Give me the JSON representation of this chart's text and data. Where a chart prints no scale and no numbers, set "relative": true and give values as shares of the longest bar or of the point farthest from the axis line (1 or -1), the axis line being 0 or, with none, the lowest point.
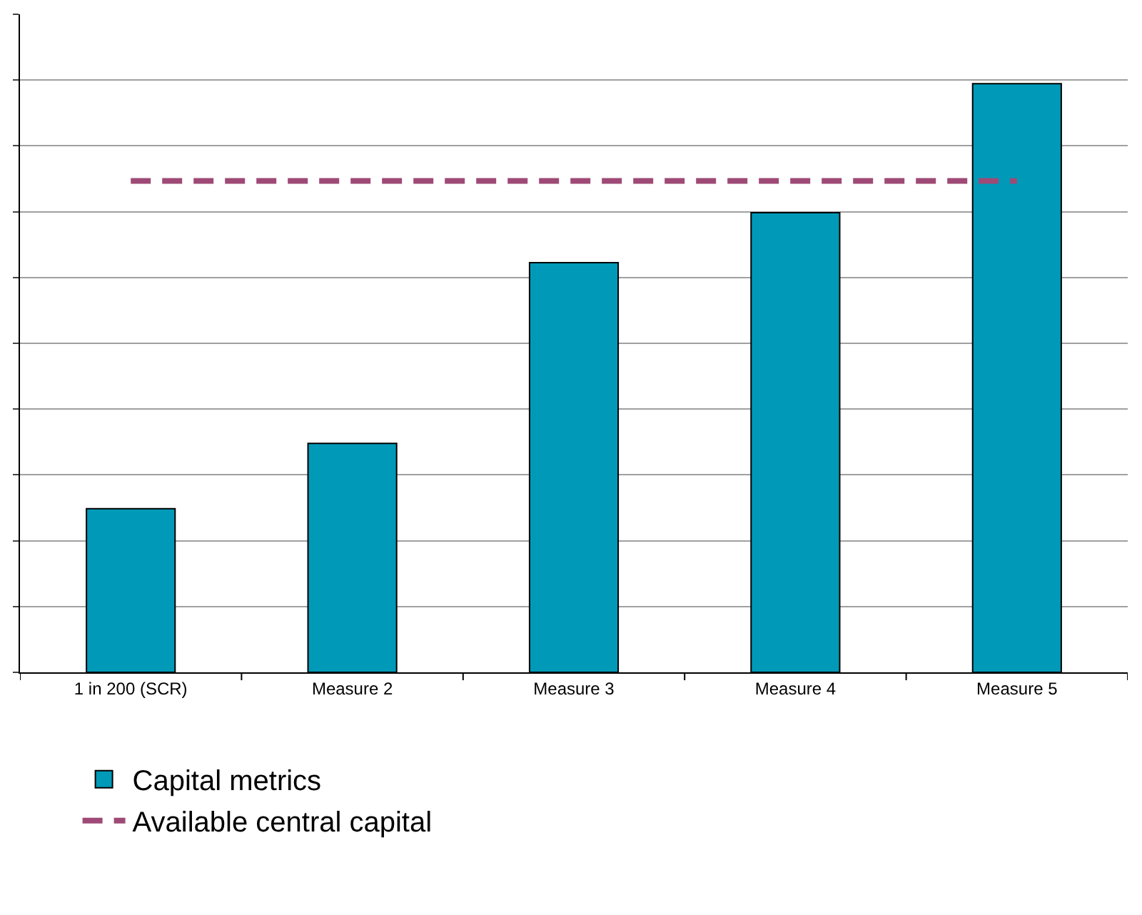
{
  "chart_data": {
    "type": "bar",
    "relative": true,
    "categories": [
      "1 in 200 (SCR)",
      "Measure 2",
      "Measure 3",
      "Measure 4",
      "Measure 5"
    ],
    "series": [
      {
        "name": "Capital metrics",
        "color": "#009ab8",
        "values": [
          0.278,
          0.389,
          0.696,
          0.781,
          1
        ]
      },
      {
        "name": "Available central capital",
        "type": "line",
        "color": "#9e4a76",
        "line_style": "dashed",
        "marker": "none",
        "values": [
          0.835,
          0.835,
          0.835,
          0.835,
          0.835
        ]
      }
    ],
    "grid": "y",
    "legend": "bottom left"
  }
}
